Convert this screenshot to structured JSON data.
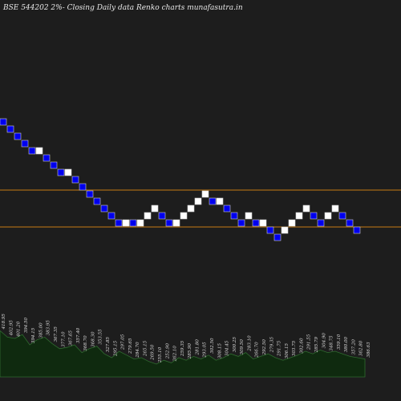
{
  "title": "BSE 544202  2%-  Closing Daily data  Renko  charts munafasutra.in",
  "colors": {
    "background": "#000000",
    "plot_background": "#1d1d1d",
    "up_brick_fill": "#ffffff",
    "down_brick_fill": "#0000ee",
    "brick_stroke": "#cfcfcf",
    "level_line": "#c77b12",
    "volume_fill": "#0f2a0f",
    "volume_stroke": "#2f6b2f"
  },
  "chart_data": {
    "type": "renko",
    "brick_direction": [
      "down",
      "down",
      "down",
      "down",
      "down",
      "up",
      "down",
      "down",
      "down",
      "up",
      "down",
      "down",
      "down",
      "down",
      "down",
      "down",
      "down",
      "up",
      "down",
      "up",
      "up",
      "up",
      "down",
      "down",
      "up",
      "up",
      "up",
      "up",
      "up",
      "down",
      "up",
      "down",
      "down",
      "down",
      "up",
      "down",
      "up",
      "down",
      "down",
      "up",
      "up",
      "up",
      "up",
      "down",
      "down",
      "up",
      "up",
      "down",
      "down",
      "down"
    ],
    "brick_level": [
      16,
      15,
      14,
      13,
      12,
      12,
      11,
      10,
      9,
      9,
      8,
      7,
      6,
      5,
      4,
      3,
      2,
      2,
      2,
      2,
      3,
      4,
      3,
      2,
      2,
      3,
      4,
      5,
      6,
      5,
      5,
      4,
      3,
      2,
      3,
      2,
      2,
      1,
      0,
      1,
      2,
      3,
      4,
      3,
      2,
      3,
      4,
      3,
      2,
      1
    ],
    "level_lines": 2,
    "volume_labels": [
      "418.95",
      "402.95",
      "401.20",
      "394.50",
      "394.15",
      "385.00",
      "383.95",
      "367.35",
      "377.10",
      "367.65",
      "357.40",
      "368.70",
      "368.30",
      "353.55",
      "327.85",
      "295.15",
      "297.05",
      "279.65",
      "284.70",
      "265.15",
      "269.50",
      "255.10",
      "252.90",
      "262.10",
      "259.35",
      "285.90",
      "281.80",
      "293.05",
      "302.50",
      "308.15",
      "304.45",
      "300.25",
      "309.50",
      "283.10",
      "266.70",
      "292.50",
      "279.35",
      "291.75",
      "306.15",
      "303.75",
      "302.60",
      "291.55",
      "285.79",
      "304.90",
      "348.75",
      "359.10",
      "380.00",
      "357.20",
      "362.80",
      "386.63"
    ],
    "volume": [
      0.72,
      0.62,
      0.6,
      0.66,
      0.5,
      0.58,
      0.62,
      0.52,
      0.44,
      0.46,
      0.5,
      0.38,
      0.44,
      0.48,
      0.36,
      0.3,
      0.4,
      0.34,
      0.28,
      0.3,
      0.24,
      0.2,
      0.26,
      0.22,
      0.3,
      0.26,
      0.32,
      0.28,
      0.34,
      0.26,
      0.3,
      0.36,
      0.32,
      0.38,
      0.28,
      0.32,
      0.36,
      0.3,
      0.26,
      0.3,
      0.34,
      0.4,
      0.36,
      0.42,
      0.38,
      0.4,
      0.36,
      0.32,
      0.3,
      0.28
    ]
  }
}
